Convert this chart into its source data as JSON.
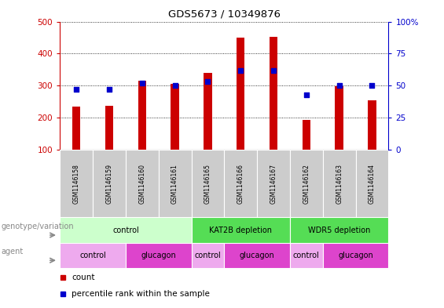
{
  "title": "GDS5673 / 10349876",
  "samples": [
    "GSM1146158",
    "GSM1146159",
    "GSM1146160",
    "GSM1146161",
    "GSM1146165",
    "GSM1146166",
    "GSM1146167",
    "GSM1146162",
    "GSM1146163",
    "GSM1146164"
  ],
  "counts": [
    235,
    237,
    315,
    305,
    340,
    450,
    452,
    193,
    298,
    254
  ],
  "percentile_ranks": [
    47,
    47,
    52,
    50,
    53,
    62,
    62,
    43,
    50,
    50
  ],
  "ylim_left": [
    100,
    500
  ],
  "ylim_right": [
    0,
    100
  ],
  "yticks_left": [
    100,
    200,
    300,
    400,
    500
  ],
  "yticks_right": [
    0,
    25,
    50,
    75,
    100
  ],
  "bar_color": "#cc0000",
  "dot_color": "#0000cc",
  "bar_width": 0.25,
  "genotype_groups": [
    {
      "label": "control",
      "start": 0,
      "end": 4,
      "color": "#ccffcc"
    },
    {
      "label": "KAT2B depletion",
      "start": 4,
      "end": 7,
      "color": "#55dd55"
    },
    {
      "label": "WDR5 depletion",
      "start": 7,
      "end": 10,
      "color": "#55dd55"
    }
  ],
  "agent_groups": [
    {
      "label": "control",
      "start": 0,
      "end": 2,
      "color": "#ee88ee"
    },
    {
      "label": "glucagon",
      "start": 2,
      "end": 4,
      "color": "#dd44dd"
    },
    {
      "label": "control",
      "start": 4,
      "end": 5,
      "color": "#ee88ee"
    },
    {
      "label": "glucagon",
      "start": 5,
      "end": 7,
      "color": "#dd44dd"
    },
    {
      "label": "control",
      "start": 7,
      "end": 8,
      "color": "#ee88ee"
    },
    {
      "label": "glucagon",
      "start": 8,
      "end": 10,
      "color": "#dd44dd"
    }
  ],
  "legend_count_color": "#cc0000",
  "legend_dot_color": "#0000cc",
  "legend_count_label": "count",
  "legend_dot_label": "percentile rank within the sample",
  "genotype_label": "genotype/variation",
  "agent_label": "agent",
  "sample_bg_color": "#cccccc",
  "left_label_color": "#888888"
}
